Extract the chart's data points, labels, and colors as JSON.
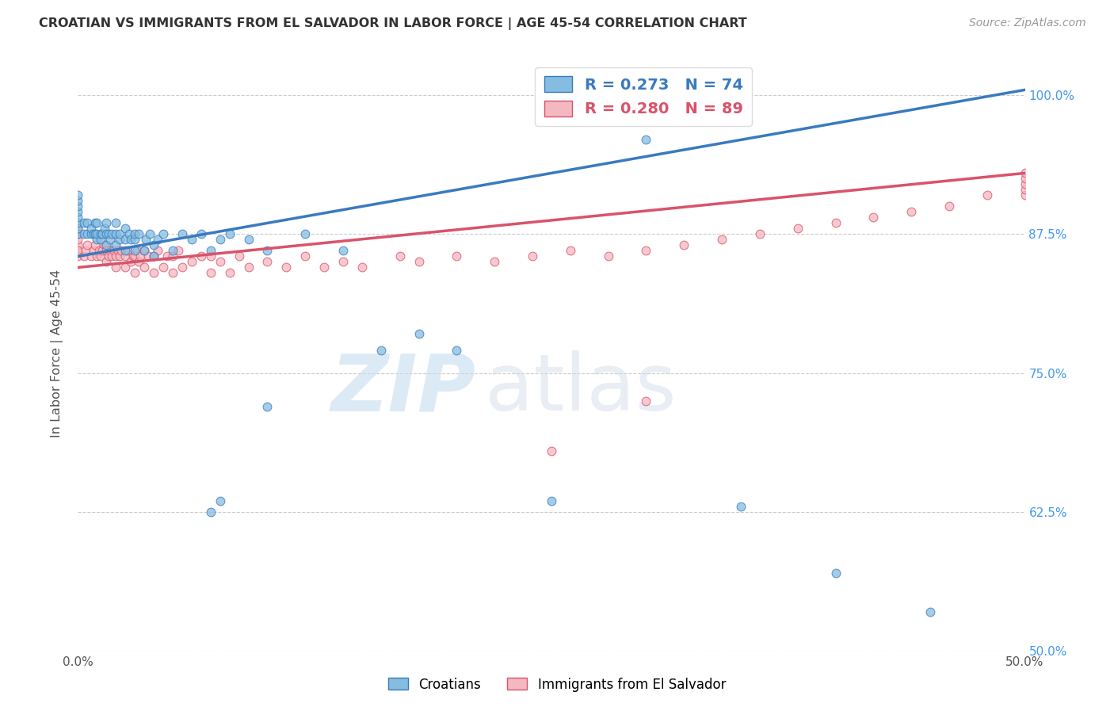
{
  "title": "CROATIAN VS IMMIGRANTS FROM EL SALVADOR IN LABOR FORCE | AGE 45-54 CORRELATION CHART",
  "source_text": "Source: ZipAtlas.com",
  "ylabel": "In Labor Force | Age 45-54",
  "x_min": 0.0,
  "x_max": 0.5,
  "y_min": 0.5,
  "y_max": 1.035,
  "x_ticks": [
    0.0,
    0.1,
    0.2,
    0.3,
    0.4,
    0.5
  ],
  "x_tick_labels": [
    "0.0%",
    "",
    "",
    "",
    "",
    "50.0%"
  ],
  "y_tick_labels_right": [
    "50.0%",
    "62.5%",
    "75.0%",
    "87.5%",
    "100.0%"
  ],
  "y_ticks_right": [
    0.5,
    0.625,
    0.75,
    0.875,
    1.0
  ],
  "croatian_color": "#85bde0",
  "el_salvador_color": "#f4b8c1",
  "trend_croatian_color": "#3a7abf",
  "trend_el_salvador_color": "#d9536a",
  "R_croatian": 0.273,
  "N_croatian": 74,
  "R_el_salvador": 0.28,
  "N_el_salvador": 89,
  "background_color": "#ffffff",
  "trend_cr_x0": 0.0,
  "trend_cr_y0": 0.855,
  "trend_cr_x1": 0.5,
  "trend_cr_y1": 1.005,
  "trend_es_x0": 0.0,
  "trend_es_y0": 0.845,
  "trend_es_x1": 0.5,
  "trend_es_y1": 0.93,
  "cr_x": [
    0.0,
    0.0,
    0.0,
    0.0,
    0.0,
    0.0,
    0.0,
    0.0,
    0.003,
    0.003,
    0.005,
    0.005,
    0.007,
    0.007,
    0.008,
    0.009,
    0.009,
    0.01,
    0.01,
    0.01,
    0.012,
    0.012,
    0.013,
    0.014,
    0.015,
    0.015,
    0.015,
    0.016,
    0.017,
    0.018,
    0.02,
    0.02,
    0.02,
    0.022,
    0.022,
    0.025,
    0.025,
    0.025,
    0.027,
    0.028,
    0.03,
    0.03,
    0.03,
    0.032,
    0.035,
    0.036,
    0.038,
    0.04,
    0.04,
    0.042,
    0.045,
    0.05,
    0.055,
    0.06,
    0.065,
    0.07,
    0.075,
    0.08,
    0.09,
    0.1,
    0.12,
    0.14,
    0.16,
    0.18,
    0.2,
    0.25,
    0.28,
    0.3,
    0.35,
    0.4,
    0.07,
    0.075,
    0.1,
    0.45
  ],
  "cr_y": [
    0.875,
    0.88,
    0.885,
    0.89,
    0.895,
    0.9,
    0.905,
    0.91,
    0.875,
    0.885,
    0.875,
    0.885,
    0.875,
    0.88,
    0.875,
    0.875,
    0.885,
    0.87,
    0.875,
    0.885,
    0.87,
    0.875,
    0.875,
    0.88,
    0.865,
    0.875,
    0.885,
    0.875,
    0.87,
    0.875,
    0.865,
    0.875,
    0.885,
    0.87,
    0.875,
    0.86,
    0.87,
    0.88,
    0.875,
    0.87,
    0.86,
    0.87,
    0.875,
    0.875,
    0.86,
    0.87,
    0.875,
    0.855,
    0.865,
    0.87,
    0.875,
    0.86,
    0.875,
    0.87,
    0.875,
    0.86,
    0.87,
    0.875,
    0.87,
    0.86,
    0.875,
    0.86,
    0.77,
    0.785,
    0.77,
    0.635,
    1.0,
    0.96,
    0.63,
    0.57,
    0.625,
    0.635,
    0.72,
    0.535
  ],
  "es_x": [
    0.0,
    0.0,
    0.0,
    0.0,
    0.0,
    0.0,
    0.0,
    0.003,
    0.004,
    0.005,
    0.007,
    0.008,
    0.009,
    0.01,
    0.011,
    0.012,
    0.013,
    0.014,
    0.015,
    0.015,
    0.016,
    0.017,
    0.018,
    0.019,
    0.02,
    0.02,
    0.021,
    0.022,
    0.023,
    0.025,
    0.025,
    0.026,
    0.028,
    0.029,
    0.03,
    0.03,
    0.031,
    0.032,
    0.033,
    0.035,
    0.035,
    0.037,
    0.04,
    0.04,
    0.042,
    0.045,
    0.047,
    0.05,
    0.05,
    0.053,
    0.055,
    0.06,
    0.065,
    0.07,
    0.07,
    0.075,
    0.08,
    0.085,
    0.09,
    0.1,
    0.11,
    0.12,
    0.13,
    0.14,
    0.15,
    0.17,
    0.18,
    0.2,
    0.22,
    0.24,
    0.26,
    0.28,
    0.3,
    0.32,
    0.34,
    0.36,
    0.38,
    0.4,
    0.42,
    0.44,
    0.46,
    0.48,
    0.5,
    0.5,
    0.5,
    0.5,
    0.5,
    0.25,
    0.3
  ],
  "es_y": [
    0.86,
    0.865,
    0.87,
    0.875,
    0.88,
    0.855,
    0.86,
    0.855,
    0.86,
    0.865,
    0.855,
    0.86,
    0.865,
    0.855,
    0.86,
    0.855,
    0.86,
    0.865,
    0.85,
    0.86,
    0.855,
    0.86,
    0.855,
    0.86,
    0.845,
    0.855,
    0.86,
    0.855,
    0.86,
    0.845,
    0.855,
    0.86,
    0.85,
    0.855,
    0.84,
    0.855,
    0.86,
    0.85,
    0.855,
    0.845,
    0.86,
    0.855,
    0.84,
    0.855,
    0.86,
    0.845,
    0.855,
    0.84,
    0.855,
    0.86,
    0.845,
    0.85,
    0.855,
    0.84,
    0.855,
    0.85,
    0.84,
    0.855,
    0.845,
    0.85,
    0.845,
    0.855,
    0.845,
    0.85,
    0.845,
    0.855,
    0.85,
    0.855,
    0.85,
    0.855,
    0.86,
    0.855,
    0.86,
    0.865,
    0.87,
    0.875,
    0.88,
    0.885,
    0.89,
    0.895,
    0.9,
    0.91,
    0.91,
    0.915,
    0.92,
    0.925,
    0.93,
    0.68,
    0.725
  ]
}
